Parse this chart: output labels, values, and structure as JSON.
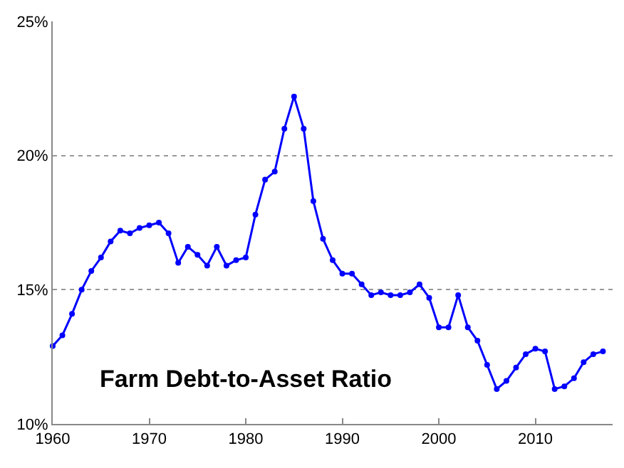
{
  "chart_data": {
    "type": "line",
    "annotations": [
      {
        "text": "Farm Debt-to-Asset Ratio"
      }
    ],
    "x": [
      1960,
      1961,
      1962,
      1963,
      1964,
      1965,
      1966,
      1967,
      1968,
      1969,
      1970,
      1971,
      1972,
      1973,
      1974,
      1975,
      1976,
      1977,
      1978,
      1979,
      1980,
      1981,
      1982,
      1983,
      1984,
      1985,
      1986,
      1987,
      1988,
      1989,
      1990,
      1991,
      1992,
      1993,
      1994,
      1995,
      1996,
      1997,
      1998,
      1999,
      2000,
      2001,
      2002,
      2003,
      2004,
      2005,
      2006,
      2007,
      2008,
      2009,
      2010,
      2011,
      2012,
      2013,
      2014,
      2015,
      2016,
      2017
    ],
    "series": [
      {
        "color": "#0000ff",
        "values": [
          12.9,
          13.3,
          14.1,
          15.0,
          15.7,
          16.2,
          16.8,
          17.2,
          17.1,
          17.3,
          17.4,
          17.5,
          17.1,
          16.0,
          16.6,
          16.3,
          15.9,
          16.6,
          15.9,
          16.1,
          16.2,
          17.8,
          19.1,
          19.4,
          21.0,
          22.2,
          21.0,
          18.3,
          16.9,
          16.1,
          15.6,
          15.6,
          15.2,
          14.8,
          14.9,
          14.8,
          14.8,
          14.9,
          15.2,
          14.7,
          13.6,
          13.6,
          14.8,
          13.6,
          13.1,
          12.2,
          11.3,
          11.6,
          12.1,
          12.6,
          12.8,
          12.7,
          11.3,
          11.4,
          11.7,
          12.3,
          12.6,
          12.7
        ]
      }
    ],
    "xlim": [
      1960,
      2018
    ],
    "xticks": [
      1960,
      1970,
      1980,
      1990,
      2000,
      2010
    ],
    "ylim": [
      10,
      25
    ],
    "yticks": [
      {
        "value": 10,
        "label": "10%"
      },
      {
        "value": 15,
        "label": "15%"
      },
      {
        "value": 20,
        "label": "20%"
      },
      {
        "value": 25,
        "label": "25%"
      }
    ],
    "grid": "y",
    "legend": false,
    "marker": "circle",
    "line_style": "solid"
  }
}
